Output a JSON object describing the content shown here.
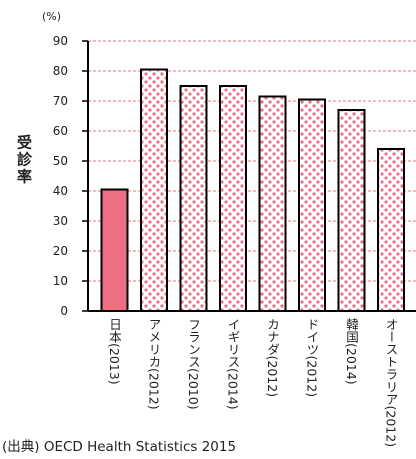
{
  "chart_data": {
    "type": "bar",
    "unit_label": "(%)",
    "ylabel": "受診率",
    "categories": [
      "日本(2013)",
      "アメリカ(2012)",
      "フランス(2010)",
      "イギリス(2014)",
      "カナダ(2012)",
      "ドイツ(2012)",
      "韓国(2014)",
      "オーストラリア(2012)"
    ],
    "values": [
      40.5,
      80.5,
      75.0,
      75.0,
      71.5,
      70.5,
      67.0,
      54.0
    ],
    "ylim": [
      0,
      90
    ],
    "yticks": [
      0,
      10,
      20,
      30,
      40,
      50,
      60,
      70,
      80,
      90
    ],
    "grid": true,
    "highlight_index": 0,
    "colors": {
      "highlight": "#ef6f82",
      "dot": "#ef6f82",
      "bar_fill": "#ffffff",
      "bar_outline": "#000000",
      "gridline": "#ef6f82",
      "axis": "#000000"
    },
    "source": "(出典) OECD Health Statistics 2015"
  }
}
